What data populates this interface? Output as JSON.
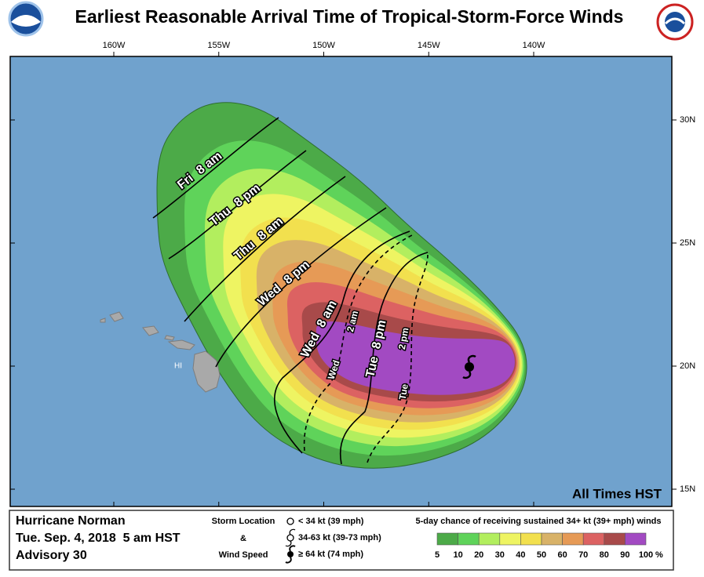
{
  "header": {
    "title": "Earliest Reasonable Arrival Time of Tropical-Storm-Force Winds"
  },
  "map": {
    "lon_ticks": [
      {
        "value": -160,
        "label": "160W"
      },
      {
        "value": -155,
        "label": "155W"
      },
      {
        "value": -150,
        "label": "150W"
      },
      {
        "value": -145,
        "label": "145W"
      },
      {
        "value": -140,
        "label": "140W"
      }
    ],
    "lat_ticks": [
      {
        "value": 30,
        "label": "30N"
      },
      {
        "value": 25,
        "label": "25N"
      },
      {
        "value": 20,
        "label": "20N"
      },
      {
        "value": 15,
        "label": "15N"
      }
    ],
    "place_label": "HI",
    "time_note": "All Times HST",
    "arrival_labels": [
      {
        "day": "Fri",
        "time": "8 am"
      },
      {
        "day": "Thu",
        "time": "8 pm"
      },
      {
        "day": "Thu",
        "time": "8 am"
      },
      {
        "day": "Wed",
        "time": "8 pm"
      },
      {
        "day": "Wed",
        "time": "8 am"
      },
      {
        "day": "Wed",
        "time": "2 am"
      },
      {
        "day": "Tue",
        "time": "8 pm"
      },
      {
        "day": "Tue",
        "time": "2 pm"
      }
    ]
  },
  "footer": {
    "storm": "Hurricane Norman",
    "date": "Tue. Sep. 4, 2018  5 am HST",
    "advisory": "Advisory 30",
    "key_title": [
      "Storm Location",
      "&",
      "Wind Speed"
    ],
    "key_items": [
      "< 34 kt (39 mph)",
      "34-63 kt (39-73 mph)",
      "≥ 64 kt (74 mph)"
    ]
  },
  "legend": {
    "title": "5-day chance of receiving sustained 34+ kt (39+ mph) winds",
    "values": [
      5,
      10,
      20,
      30,
      40,
      50,
      60,
      70,
      80,
      90,
      100
    ],
    "colors": [
      "#4caa48",
      "#5fd35a",
      "#b2ee5e",
      "#eef462",
      "#f2e04e",
      "#d8b268",
      "#e69a56",
      "#dc6262",
      "#a84a4a",
      "#a24ac2"
    ],
    "unit": "%"
  }
}
